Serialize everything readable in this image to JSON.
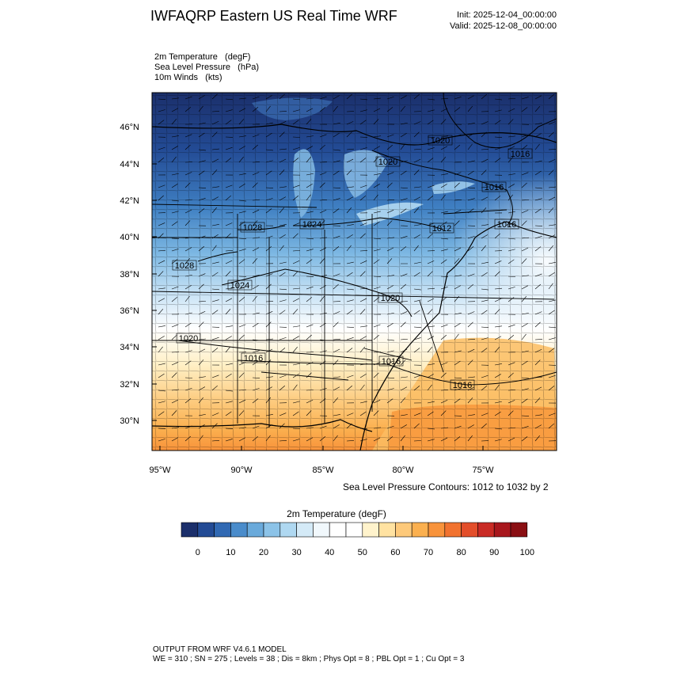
{
  "header": {
    "title": "IWFAQRP Eastern US Real Time WRF",
    "init": "Init: 2025-12-04_00:00:00",
    "valid": "Valid: 2025-12-08_00:00:00"
  },
  "fields": [
    "2m Temperature   (degF)",
    "Sea Level Pressure   (hPa)",
    "10m Winds   (kts)"
  ],
  "map": {
    "lat_labels": [
      "46°N",
      "44°N",
      "42°N",
      "40°N",
      "38°N",
      "36°N",
      "34°N",
      "32°N",
      "30°N"
    ],
    "lon_labels": [
      "95°W",
      "90°W",
      "85°W",
      "80°W",
      "75°W"
    ],
    "contour_labels": [
      {
        "text": "1020",
        "place": "quebec"
      },
      {
        "text": "1016",
        "place": "maine"
      },
      {
        "text": "1020",
        "place": "lake-huron"
      },
      {
        "text": "1016",
        "place": "new-york"
      },
      {
        "text": "1024",
        "place": "lake-michigan"
      },
      {
        "text": "1028",
        "place": "iowa"
      },
      {
        "text": "1012",
        "place": "pennsylvania"
      },
      {
        "text": "1016",
        "place": "new-york-city"
      },
      {
        "text": "1028",
        "place": "kansas"
      },
      {
        "text": "1024",
        "place": "missouri"
      },
      {
        "text": "1020",
        "place": "virginia"
      },
      {
        "text": "1020",
        "place": "oklahoma"
      },
      {
        "text": "1016",
        "place": "arkansas"
      },
      {
        "text": "1016",
        "place": "carolina"
      },
      {
        "text": "1016",
        "place": "atlantic"
      }
    ],
    "contour_note": "Sea Level Pressure Contours: 1012 to 1032 by 2"
  },
  "colorbar": {
    "title": "2m Temperature   (degF)",
    "colors": [
      "#1b2f6b",
      "#234b95",
      "#3169b3",
      "#4a8ccb",
      "#6aaadb",
      "#8cc3e8",
      "#afd8f1",
      "#d4eaf7",
      "#f1f8fc",
      "#ffffff",
      "#ffffff",
      "#fff3cc",
      "#ffe2a1",
      "#fdc97a",
      "#fbb04f",
      "#f8933b",
      "#f1722f",
      "#e34e2a",
      "#c92b25",
      "#a8171d",
      "#8a0f13"
    ],
    "labels": [
      "0",
      "10",
      "20",
      "30",
      "40",
      "50",
      "60",
      "70",
      "80",
      "90",
      "100"
    ]
  },
  "footer": {
    "line1": "OUTPUT FROM WRF V4.6.1 MODEL",
    "line2": "WE = 310 ; SN = 275 ; Levels = 38 ; Dis = 8km ; Phys Opt = 8 ; PBL Opt = 1 ; Cu Opt = 3"
  }
}
